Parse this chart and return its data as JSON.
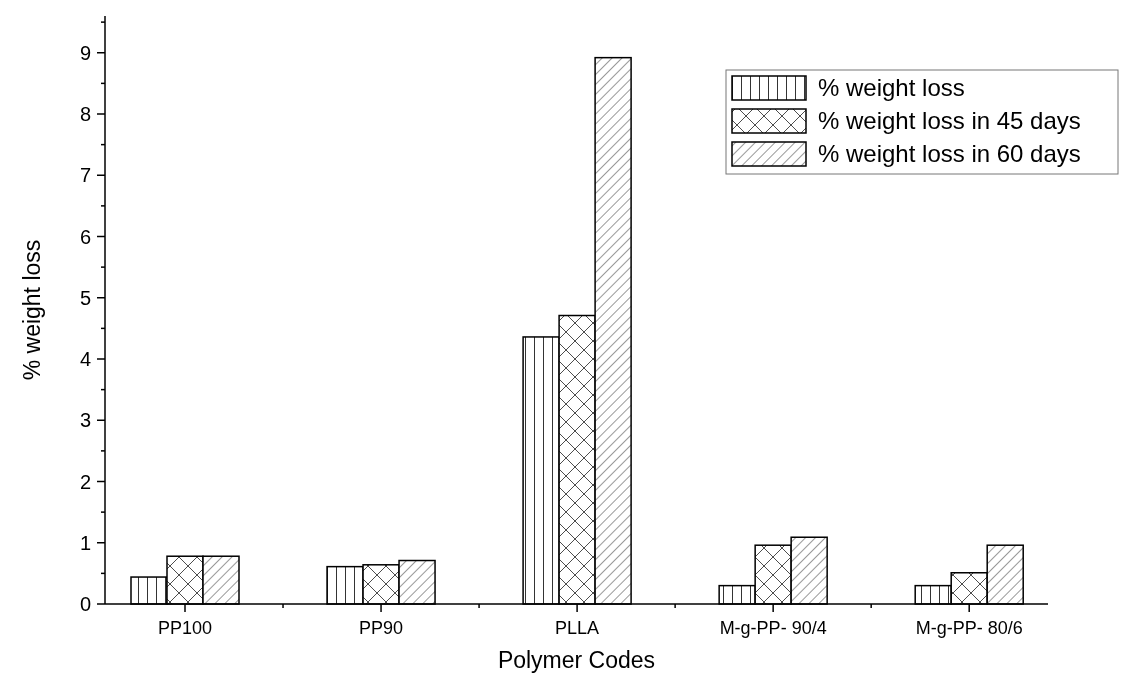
{
  "chart_data": {
    "type": "bar",
    "xlabel": "Polymer Codes",
    "ylabel": "% weight loss",
    "categories": [
      "PP100",
      "PP90",
      "PLLA",
      "M-g-PP- 90/4",
      "M-g-PP- 80/6"
    ],
    "series": [
      {
        "name": "% weight loss",
        "color": "#000000",
        "values": [
          0.44,
          0.61,
          4.36,
          0.3,
          0.3
        ]
      },
      {
        "name": "% weight loss in 45 days",
        "color": "#000000",
        "values": [
          0.78,
          0.64,
          4.71,
          0.96,
          0.51
        ]
      },
      {
        "name": "% weight loss in 60 days",
        "color": "#000000",
        "values": [
          0.78,
          0.71,
          8.92,
          1.09,
          0.96
        ]
      }
    ],
    "ylim": [
      0,
      9.6
    ],
    "yticks": [
      0,
      {
        "value": 0.5,
        "label": null
      },
      1,
      {
        "value": 1.5,
        "label": null
      },
      2,
      {
        "value": 2.5,
        "label": null
      },
      3,
      {
        "value": 3.5,
        "label": null
      },
      4,
      {
        "value": 4.5,
        "label": null
      },
      5,
      {
        "value": 5.5,
        "label": null
      },
      6,
      {
        "value": 6.5,
        "label": null
      },
      7,
      {
        "value": 7.5,
        "label": null
      },
      8,
      {
        "value": 8.5,
        "label": null
      },
      9,
      {
        "value": 9.5,
        "label": null
      }
    ],
    "grid": false,
    "legend": "top right"
  }
}
